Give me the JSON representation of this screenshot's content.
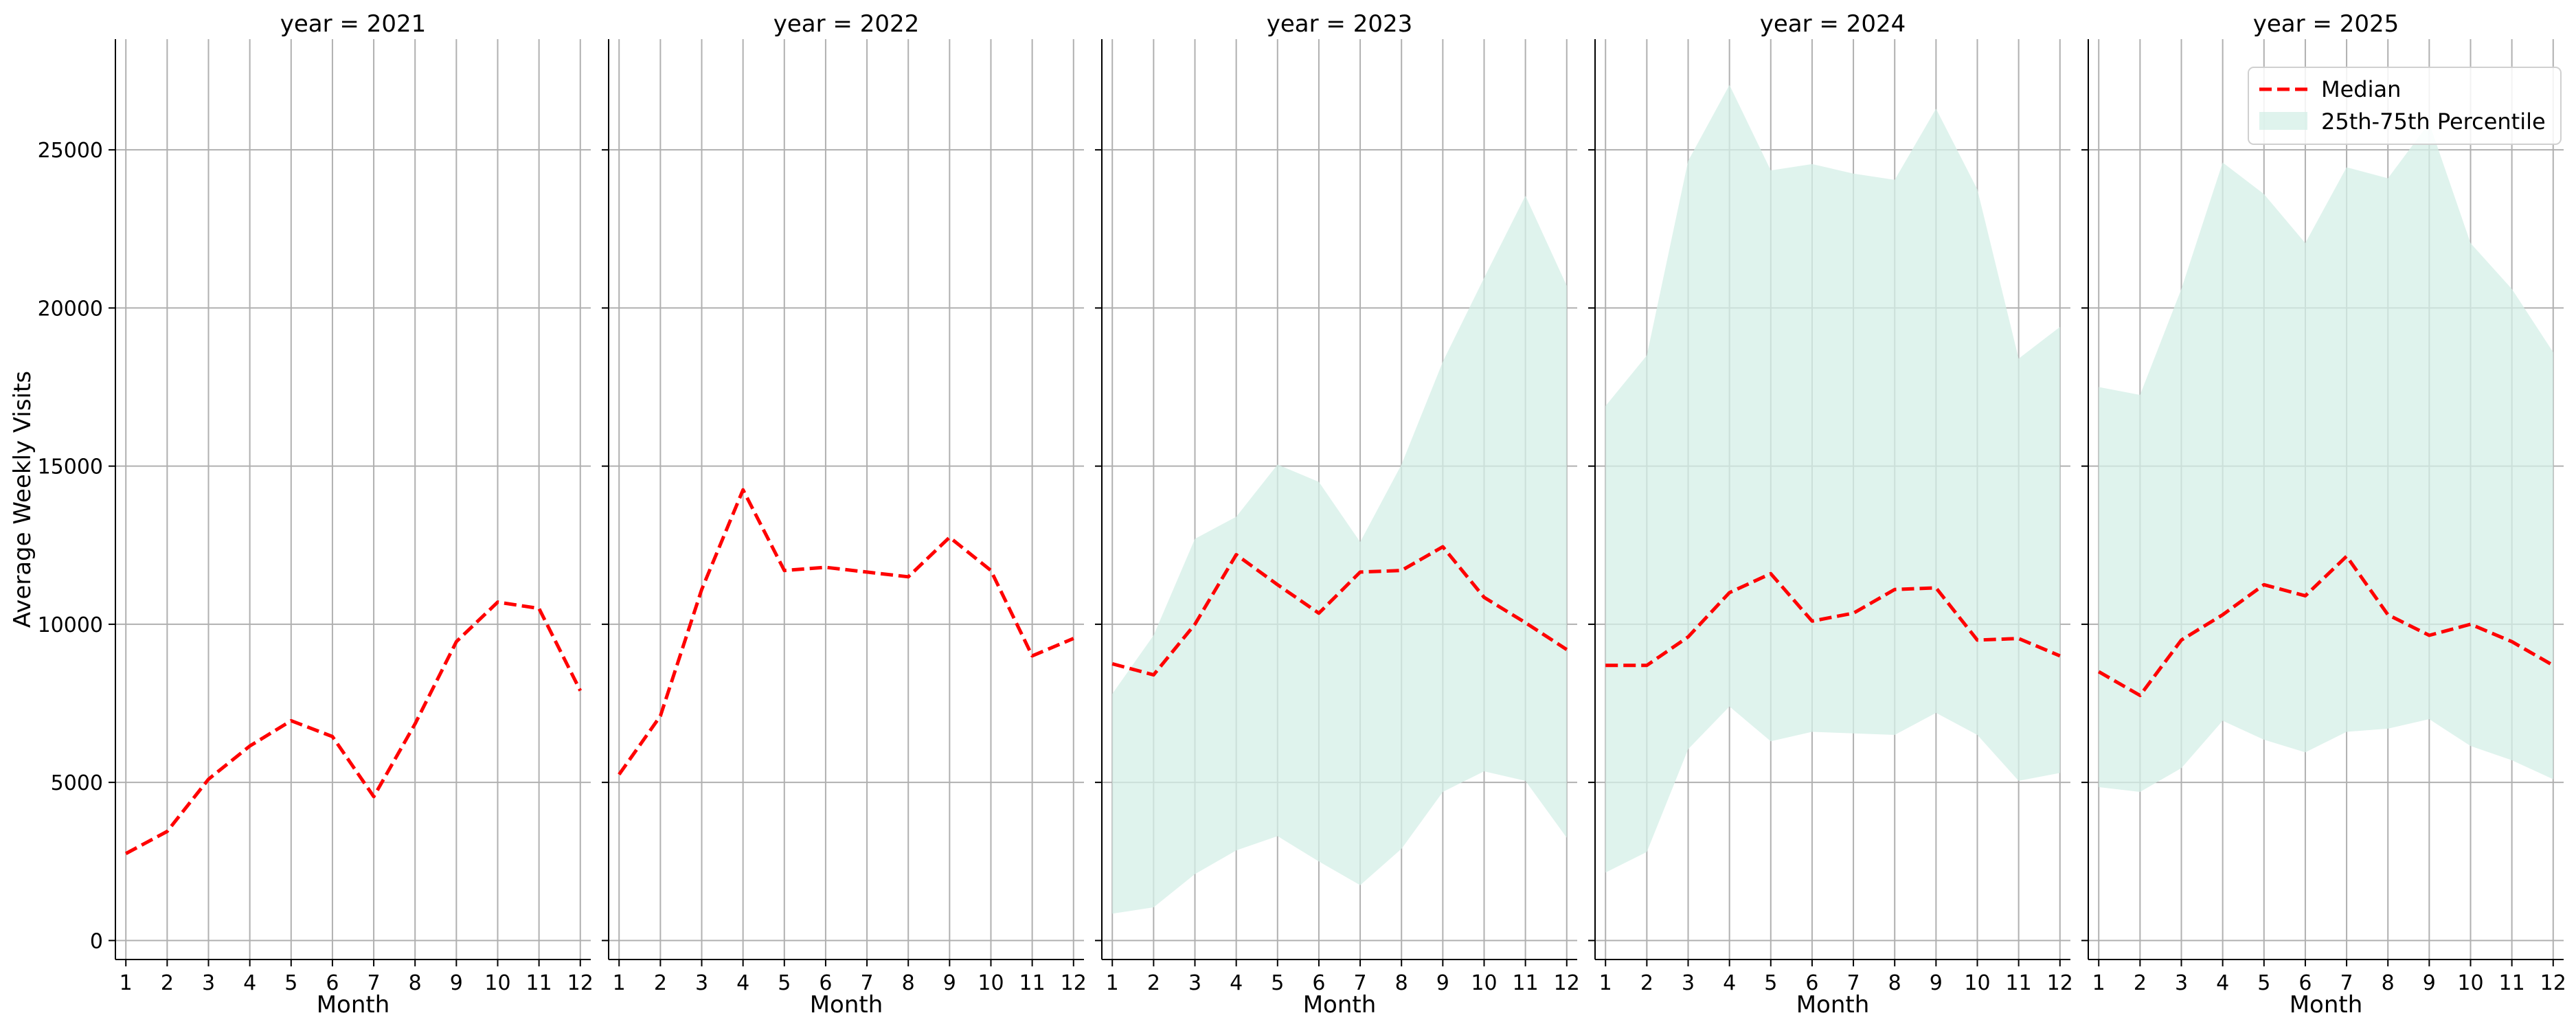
{
  "chart_data": {
    "type": "line",
    "ylabel": "Average Weekly Visits",
    "xlabel": "Month",
    "x": [
      1,
      2,
      3,
      4,
      5,
      6,
      7,
      8,
      9,
      10,
      11,
      12
    ],
    "ylim": [
      -600,
      28500
    ],
    "yticks": [
      0,
      5000,
      10000,
      15000,
      20000,
      25000
    ],
    "grid": true,
    "legend": {
      "position": "top-right",
      "entries": [
        "Median",
        "25th-75th Percentile"
      ]
    },
    "colors": {
      "median": "#ff0000",
      "band": "#d4efe7",
      "grid": "#b0b0b0",
      "axis": "#000000"
    },
    "panels": [
      {
        "title": "year = 2021",
        "median": [
          2750,
          3450,
          5100,
          6150,
          6950,
          6450,
          4550,
          6850,
          9450,
          10700,
          10500,
          7900
        ],
        "p25": null,
        "p75": null
      },
      {
        "title": "year = 2022",
        "median": [
          5250,
          7100,
          11100,
          14250,
          11700,
          11800,
          11650,
          11500,
          12750,
          11700,
          9000,
          9550
        ],
        "p25": null,
        "p75": null
      },
      {
        "title": "year = 2023",
        "median": [
          8750,
          8400,
          10000,
          12200,
          11250,
          10350,
          11650,
          11700,
          12450,
          10850,
          10050,
          9200
        ],
        "p25": [
          850,
          1050,
          2100,
          2850,
          3300,
          2500,
          1750,
          2900,
          4700,
          5350,
          5050,
          3250
        ],
        "p75": [
          7800,
          9650,
          12700,
          13400,
          15050,
          14500,
          12600,
          15050,
          18300,
          20950,
          23550,
          20700
        ]
      },
      {
        "title": "year = 2024",
        "median": [
          8700,
          8700,
          9600,
          11000,
          11600,
          10100,
          10350,
          11100,
          11150,
          9500,
          9550,
          9000
        ],
        "p25": [
          2150,
          2800,
          6050,
          7400,
          6300,
          6600,
          6550,
          6500,
          7200,
          6500,
          5050,
          5300
        ],
        "p75": [
          16900,
          18500,
          24650,
          27050,
          24350,
          24550,
          24250,
          24050,
          26300,
          23750,
          18400,
          19400
        ]
      },
      {
        "title": "year = 2025",
        "median": [
          8500,
          7750,
          9500,
          10300,
          11250,
          10900,
          12150,
          10300,
          9650,
          10000,
          9450,
          8700
        ],
        "p25": [
          4850,
          4700,
          5450,
          6950,
          6350,
          5950,
          6600,
          6700,
          7000,
          6150,
          5700,
          5100
        ],
        "p75": [
          17500,
          17250,
          20600,
          24600,
          23600,
          22050,
          24450,
          24100,
          25850,
          22050,
          20600,
          18600
        ]
      }
    ]
  }
}
